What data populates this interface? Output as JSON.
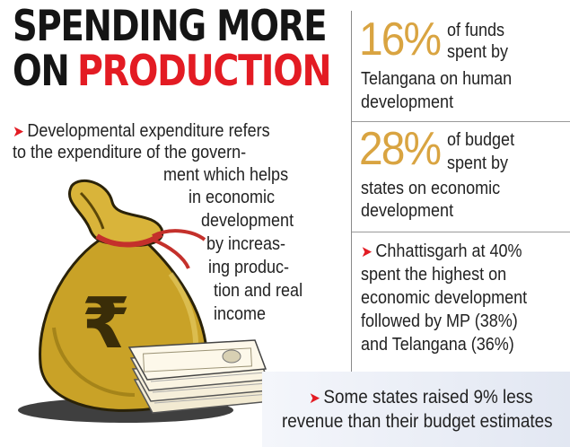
{
  "headline": {
    "line1": "SPENDING MORE",
    "line2_prefix": "ON",
    "line2_highlight": "PRODUCTION"
  },
  "description": {
    "lines": [
      "Developmental expenditure refers",
      "to the expenditure of the govern-",
      "ment which helps",
      "in economic",
      "development",
      "by increas-",
      "ing produc-",
      "tion and real",
      "income"
    ]
  },
  "stats": [
    {
      "value": "16%",
      "lines": [
        "of funds",
        "spent by",
        "Telangana on human",
        "development"
      ]
    },
    {
      "value": "28%",
      "lines": [
        "of budget",
        "spent by",
        "states on economic",
        "development"
      ]
    }
  ],
  "highlight": {
    "lines": [
      "Chhattisgarh at 40%",
      "spent the highest on",
      "economic development",
      "followed by MP (38%)",
      "and Telangana (36%)"
    ]
  },
  "footnote": {
    "lines": [
      "Some states raised 9% less",
      "revenue than their budget estimates"
    ]
  },
  "illustration": {
    "symbol": "₹",
    "icons": [
      "money-bag-icon",
      "rupee-icon",
      "currency-notes-icon"
    ]
  },
  "colors": {
    "accent_red": "#e31b23",
    "stat_gold": "#d9a441",
    "bag_gold": "#c9a227",
    "bottom_panel": "#e6eaf3"
  }
}
